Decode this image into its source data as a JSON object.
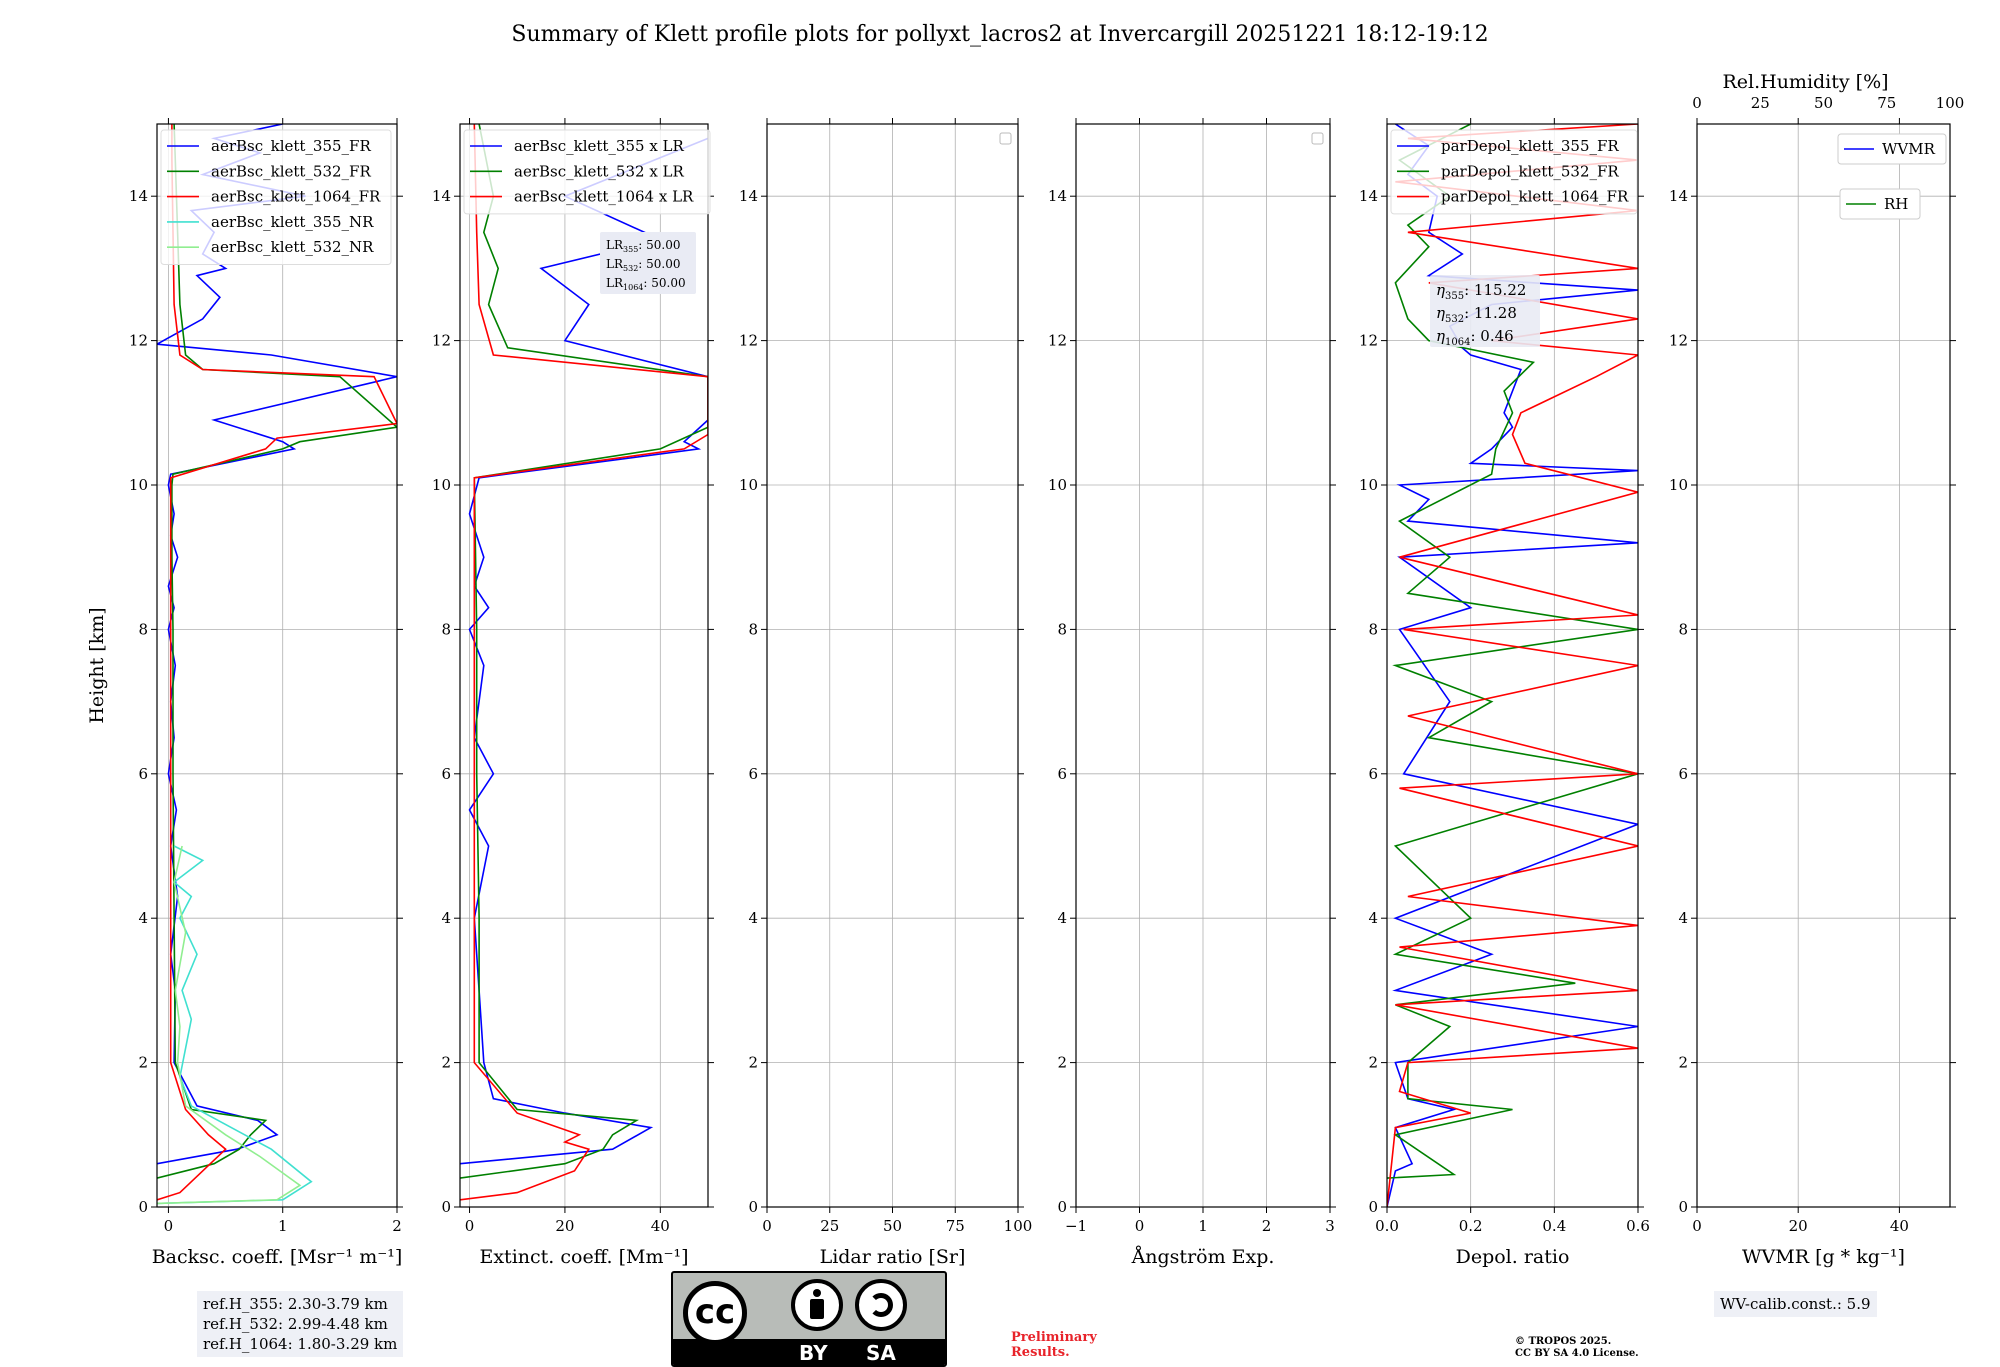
{
  "title": "Summary of Klett profile plots for pollyxt_lacros2 at Invercargill 20251221 18:12-19:12",
  "y_axis": {
    "label": "Height [km]",
    "ticks": [
      0,
      2,
      4,
      6,
      8,
      10,
      12,
      14
    ],
    "range": [
      0,
      15
    ]
  },
  "panels": [
    {
      "id": "bsc",
      "xlabel": "Backsc. coeff. [Msr⁻¹ m⁻¹]",
      "xrange": [
        -0.1,
        2
      ],
      "xticks": [
        0,
        1,
        2
      ],
      "xticklabels": [
        "0",
        "1",
        "2"
      ],
      "legend": [
        {
          "label": "aerBsc_klett_355_FR",
          "color": "#0000ff"
        },
        {
          "label": "aerBsc_klett_532_FR",
          "color": "#008000"
        },
        {
          "label": "aerBsc_klett_1064_FR",
          "color": "#ff0000"
        },
        {
          "label": "aerBsc_klett_355_NR",
          "color": "#40e0d0"
        },
        {
          "label": "aerBsc_klett_532_NR",
          "color": "#90ee90"
        }
      ]
    },
    {
      "id": "ext",
      "xlabel": "Extinct. coeff. [Mm⁻¹]",
      "xrange": [
        -2,
        50
      ],
      "xticks": [
        0,
        20,
        40
      ],
      "xticklabels": [
        "0",
        "20",
        "40"
      ],
      "legend": [
        {
          "label": "aerBsc_klett_355 x LR",
          "color": "#0000ff"
        },
        {
          "label": "aerBsc_klett_532 x LR",
          "color": "#008000"
        },
        {
          "label": "aerBsc_klett_1064 x LR",
          "color": "#ff0000"
        }
      ]
    },
    {
      "id": "lr",
      "xlabel": "Lidar ratio [Sr]",
      "xrange": [
        0,
        100
      ],
      "xticks": [
        0,
        25,
        50,
        75,
        100
      ],
      "xticklabels": [
        "0",
        "25",
        "50",
        "75",
        "100"
      ],
      "legend": []
    },
    {
      "id": "ang",
      "xlabel": "Ångström Exp.",
      "xrange": [
        -1,
        3
      ],
      "xticks": [
        -1,
        0,
        1,
        2,
        3
      ],
      "xticklabels": [
        "−1",
        "0",
        "1",
        "2",
        "3"
      ],
      "legend": []
    },
    {
      "id": "dep",
      "xlabel": "Depol. ratio",
      "xrange": [
        0,
        0.6
      ],
      "xticks": [
        0,
        0.2,
        0.4,
        0.6
      ],
      "xticklabels": [
        "0.0",
        "0.2",
        "0.4",
        "0.6"
      ],
      "legend": [
        {
          "label": "parDepol_klett_355_FR",
          "color": "#0000ff"
        },
        {
          "label": "parDepol_klett_532_FR",
          "color": "#008000"
        },
        {
          "label": "parDepol_klett_1064_FR",
          "color": "#ff0000"
        }
      ]
    },
    {
      "id": "wv",
      "xlabel": "WVMR [g * kg⁻¹]",
      "xrange": [
        0,
        50
      ],
      "xticks": [
        0,
        20,
        40
      ],
      "xticklabels": [
        "0",
        "20",
        "40"
      ],
      "top_xlabel": "Rel.Humidity [%]",
      "top_xticks": [
        0,
        25,
        50,
        75,
        100
      ],
      "top_xticklabels": [
        "0",
        "25",
        "50",
        "75",
        "100"
      ],
      "legend": [
        {
          "label": "WVMR",
          "color": "#0000ff"
        },
        {
          "label": "RH",
          "color": "#008000"
        }
      ]
    }
  ],
  "lidar_ratio_text": {
    "prefix": "LR",
    "items": [
      {
        "sub": "355",
        "value": "50.00"
      },
      {
        "sub": "532",
        "value": "50.00"
      },
      {
        "sub": "1064",
        "value": "50.00"
      }
    ]
  },
  "eta_text": {
    "symbol": "η",
    "items": [
      {
        "sub": "355",
        "value": "115.22"
      },
      {
        "sub": "532",
        "value": "11.28"
      },
      {
        "sub": "1064",
        "value": "0.46"
      }
    ]
  },
  "ref_heights": [
    "ref.H_355: 2.30-3.79 km",
    "ref.H_532: 2.99-4.48 km",
    "ref.H_1064: 1.80-3.29 km"
  ],
  "wv_calib": "WV-calib.const.: 5.9",
  "cc_badge": {
    "cc": "cc",
    "by": "BY",
    "sa": "SA"
  },
  "preliminary": [
    "Preliminary",
    "Results."
  ],
  "copyright": [
    "© TROPOS 2025.",
    "CC BY SA 4.0 License."
  ],
  "colors": {
    "b355": "#0000ff",
    "g532": "#008000",
    "r1064": "#ff0000",
    "c355nr": "#40e0d0",
    "lg532nr": "#90ee90",
    "grid": "#b0b0b0"
  },
  "chart_data": {
    "type": "line",
    "title": "Summary of Klett profile plots for pollyxt_lacros2 at Invercargill 20251221 18:12-19:12",
    "ylabel": "Height [km]",
    "ylim": [
      0,
      15
    ],
    "backscatter": {
      "xlabel": "Backsc. coeff. [Msr⁻¹ m⁻¹]",
      "xlim": [
        -0.1,
        2
      ],
      "series": [
        {
          "name": "aerBsc_klett_355_FR",
          "color": "#0000ff",
          "x": [
            -0.1,
            0.6,
            0.95,
            0.78,
            0.25,
            0.05,
            0.06,
            0.02,
            0.08,
            0.02,
            0.07,
            0.0,
            0.05,
            0.02,
            0.06,
            0.0,
            0.05,
            0.0,
            0.08,
            0.02,
            0.05,
            0.0,
            0.02,
            1.1,
            1.0,
            0.4,
            2.0,
            0.9,
            -0.1,
            0.3,
            0.45,
            0.25,
            0.5,
            0.3,
            0.4,
            0.2,
            1.2,
            0.3,
            0.8,
            0.4,
            1.0
          ],
          "y": [
            0.6,
            0.8,
            1.0,
            1.2,
            1.4,
            2.0,
            3.0,
            3.5,
            4.3,
            5.0,
            5.5,
            6.0,
            6.5,
            7.0,
            7.5,
            8.0,
            8.3,
            8.6,
            9.0,
            9.3,
            9.6,
            10.0,
            10.15,
            10.5,
            10.6,
            10.9,
            11.5,
            11.8,
            11.95,
            12.3,
            12.6,
            12.9,
            13.0,
            13.2,
            13.5,
            13.8,
            14.0,
            14.3,
            14.6,
            14.8,
            15.0
          ]
        },
        {
          "name": "aerBsc_klett_532_FR",
          "color": "#008000",
          "x": [
            -0.1,
            0.4,
            0.62,
            0.72,
            0.85,
            0.2,
            0.06,
            0.05,
            0.04,
            0.04,
            0.03,
            0.03,
            0.03,
            0.04,
            1.0,
            1.15,
            2.0,
            1.5,
            0.3,
            0.15,
            0.1,
            0.08,
            0.06,
            0.05
          ],
          "y": [
            0.4,
            0.6,
            0.8,
            1.0,
            1.2,
            1.35,
            2.0,
            4.0,
            6.0,
            8.0,
            9.0,
            9.8,
            10.0,
            10.15,
            10.5,
            10.6,
            10.8,
            11.5,
            11.6,
            11.8,
            12.5,
            13.5,
            14.5,
            15.0
          ]
        },
        {
          "name": "aerBsc_klett_1064_FR",
          "color": "#ff0000",
          "x": [
            -0.1,
            0.1,
            0.3,
            0.5,
            0.35,
            0.15,
            0.02,
            0.02,
            0.02,
            0.02,
            0.02,
            0.02,
            0.85,
            0.95,
            2.0,
            1.8,
            0.3,
            0.1,
            0.05,
            0.04,
            0.03,
            0.03
          ],
          "y": [
            0.1,
            0.2,
            0.5,
            0.8,
            1.0,
            1.35,
            2.0,
            4.0,
            6.0,
            8.0,
            9.8,
            10.1,
            10.5,
            10.65,
            10.85,
            11.5,
            11.6,
            11.8,
            12.5,
            13.5,
            14.5,
            15.0
          ]
        },
        {
          "name": "aerBsc_klett_355_NR",
          "color": "#40e0d0",
          "x": [
            -0.1,
            1.0,
            1.25,
            0.9,
            0.55,
            0.2,
            0.1,
            0.15,
            0.2,
            0.12,
            0.25,
            0.1,
            0.2,
            0.05,
            0.3,
            0.05
          ],
          "y": [
            0.05,
            0.1,
            0.35,
            0.8,
            1.1,
            1.4,
            1.8,
            2.2,
            2.6,
            3.0,
            3.5,
            4.0,
            4.3,
            4.5,
            4.8,
            5.0
          ]
        },
        {
          "name": "aerBsc_klett_532_NR",
          "color": "#90ee90",
          "x": [
            -0.1,
            0.95,
            1.15,
            0.8,
            0.5,
            0.15,
            0.08,
            0.1,
            0.06,
            0.15,
            0.05,
            0.12
          ],
          "y": [
            0.05,
            0.1,
            0.3,
            0.7,
            1.0,
            1.4,
            2.0,
            2.5,
            3.0,
            3.8,
            4.5,
            5.0
          ]
        }
      ]
    },
    "extinction": {
      "xlabel": "Extinct. coeff. [Mm⁻¹]",
      "xlim": [
        -2,
        50
      ],
      "series": [
        {
          "name": "aerBsc_klett_355 x LR",
          "color": "#0000ff",
          "x": [
            -2,
            30,
            38,
            20,
            5,
            3,
            2,
            1,
            4,
            0,
            5,
            1,
            3,
            0,
            4,
            1,
            3,
            0,
            2,
            48,
            45,
            50,
            50,
            20,
            25,
            15,
            40,
            20,
            50
          ],
          "y": [
            0.6,
            0.8,
            1.1,
            1.3,
            1.5,
            2.0,
            3.0,
            4.0,
            5.0,
            5.5,
            6.0,
            6.5,
            7.5,
            8.0,
            8.3,
            8.6,
            9.0,
            9.6,
            10.1,
            10.5,
            10.6,
            10.9,
            11.5,
            12.0,
            12.5,
            13.0,
            13.4,
            14.0,
            14.8
          ]
        },
        {
          "name": "aerBsc_klett_532 x LR",
          "color": "#008000",
          "x": [
            -2,
            20,
            28,
            30,
            35,
            10,
            2,
            2,
            1.5,
            1.5,
            1,
            40,
            50,
            50,
            8,
            4,
            6,
            3,
            5,
            2
          ],
          "y": [
            0.4,
            0.6,
            0.8,
            1.0,
            1.2,
            1.35,
            2.0,
            4.0,
            6.0,
            8.0,
            10.1,
            10.5,
            10.8,
            11.5,
            11.9,
            12.5,
            13.0,
            13.5,
            14.0,
            15.0
          ]
        },
        {
          "name": "aerBsc_klett_1064 x LR",
          "color": "#ff0000",
          "x": [
            -2,
            10,
            22,
            25,
            20,
            23,
            10,
            1,
            1,
            1,
            1,
            45,
            50,
            50,
            5,
            2,
            1.5,
            1
          ],
          "y": [
            0.1,
            0.2,
            0.5,
            0.8,
            0.9,
            1.0,
            1.3,
            2.0,
            4.0,
            8.0,
            10.1,
            10.5,
            10.7,
            11.5,
            11.8,
            12.5,
            13.5,
            15.0
          ]
        }
      ]
    },
    "lidar_ratio": {
      "xlabel": "Lidar ratio [Sr]",
      "xlim": [
        0,
        100
      ],
      "series": []
    },
    "angstrom": {
      "xlabel": "Ångström Exp.",
      "xlim": [
        -1,
        3
      ],
      "series": []
    },
    "depol": {
      "xlabel": "Depol. ratio",
      "xlim": [
        0,
        0.6
      ],
      "series": [
        {
          "name": "parDepol_klett_355_FR",
          "color": "#0000ff",
          "x": [
            0.0,
            0.02,
            0.06,
            0.02,
            0.16,
            0.05,
            0.02,
            0.6,
            0.02,
            0.25,
            0.02,
            0.6,
            0.04,
            0.15,
            0.03,
            0.2,
            0.03,
            0.6,
            0.05,
            0.1,
            0.03,
            0.6,
            0.2,
            0.25,
            0.3,
            0.28,
            0.3,
            0.32,
            0.2,
            0.18,
            0.15,
            0.25,
            0.6,
            0.1,
            0.18,
            0.1,
            0.12,
            0.05,
            0.1,
            0.02
          ],
          "y": [
            0.0,
            0.5,
            0.6,
            1.1,
            1.35,
            1.5,
            2.0,
            2.5,
            3.0,
            3.5,
            4.0,
            5.3,
            6.0,
            7.0,
            8.0,
            8.3,
            9.0,
            9.2,
            9.5,
            9.8,
            10.0,
            10.2,
            10.3,
            10.5,
            10.8,
            11.0,
            11.3,
            11.6,
            11.8,
            11.9,
            12.2,
            12.5,
            12.7,
            12.9,
            13.2,
            13.5,
            14.0,
            14.3,
            14.7,
            15.0
          ]
        },
        {
          "name": "parDepol_klett_532_FR",
          "color": "#008000",
          "x": [
            0.0,
            0.16,
            0.02,
            0.3,
            0.05,
            0.05,
            0.15,
            0.02,
            0.45,
            0.02,
            0.2,
            0.02,
            0.6,
            0.1,
            0.25,
            0.02,
            0.6,
            0.05,
            0.15,
            0.03,
            0.25,
            0.26,
            0.3,
            0.28,
            0.35,
            0.1,
            0.05,
            0.02,
            0.1,
            0.05,
            0.15,
            0.03,
            0.2
          ],
          "y": [
            0.4,
            0.45,
            1.0,
            1.35,
            1.5,
            2.0,
            2.5,
            2.8,
            3.1,
            3.5,
            4.0,
            5.0,
            6.0,
            6.5,
            7.0,
            7.5,
            8.0,
            8.5,
            9.0,
            9.5,
            10.15,
            10.5,
            11.0,
            11.3,
            11.7,
            12.0,
            12.3,
            12.8,
            13.3,
            13.6,
            14.0,
            14.5,
            15.0
          ]
        },
        {
          "name": "parDepol_klett_1064_FR",
          "color": "#ff0000",
          "x": [
            0.0,
            0.02,
            0.2,
            0.03,
            0.05,
            0.6,
            0.02,
            0.6,
            0.03,
            0.6,
            0.05,
            0.6,
            0.03,
            0.6,
            0.05,
            0.6,
            0.04,
            0.6,
            0.03,
            0.6,
            0.33,
            0.3,
            0.32,
            0.5,
            0.6,
            0.25,
            0.6,
            0.1,
            0.6,
            0.05,
            0.6,
            0.02,
            0.6,
            0.05,
            0.6
          ],
          "y": [
            0.0,
            1.1,
            1.3,
            1.6,
            2.0,
            2.2,
            2.8,
            3.0,
            3.6,
            3.9,
            4.3,
            5.0,
            5.8,
            6.0,
            6.8,
            7.5,
            8.0,
            8.2,
            9.0,
            9.9,
            10.3,
            10.7,
            11.0,
            11.5,
            11.8,
            12.0,
            12.3,
            12.8,
            13.0,
            13.5,
            13.8,
            14.2,
            14.5,
            14.8,
            15.0
          ]
        }
      ]
    },
    "wvmr": {
      "xlabel": "WVMR [g * kg⁻¹]",
      "xlim": [
        0,
        50
      ],
      "top_xlabel": "Rel.Humidity [%]",
      "top_xlim": [
        0,
        100
      ],
      "series": []
    }
  }
}
